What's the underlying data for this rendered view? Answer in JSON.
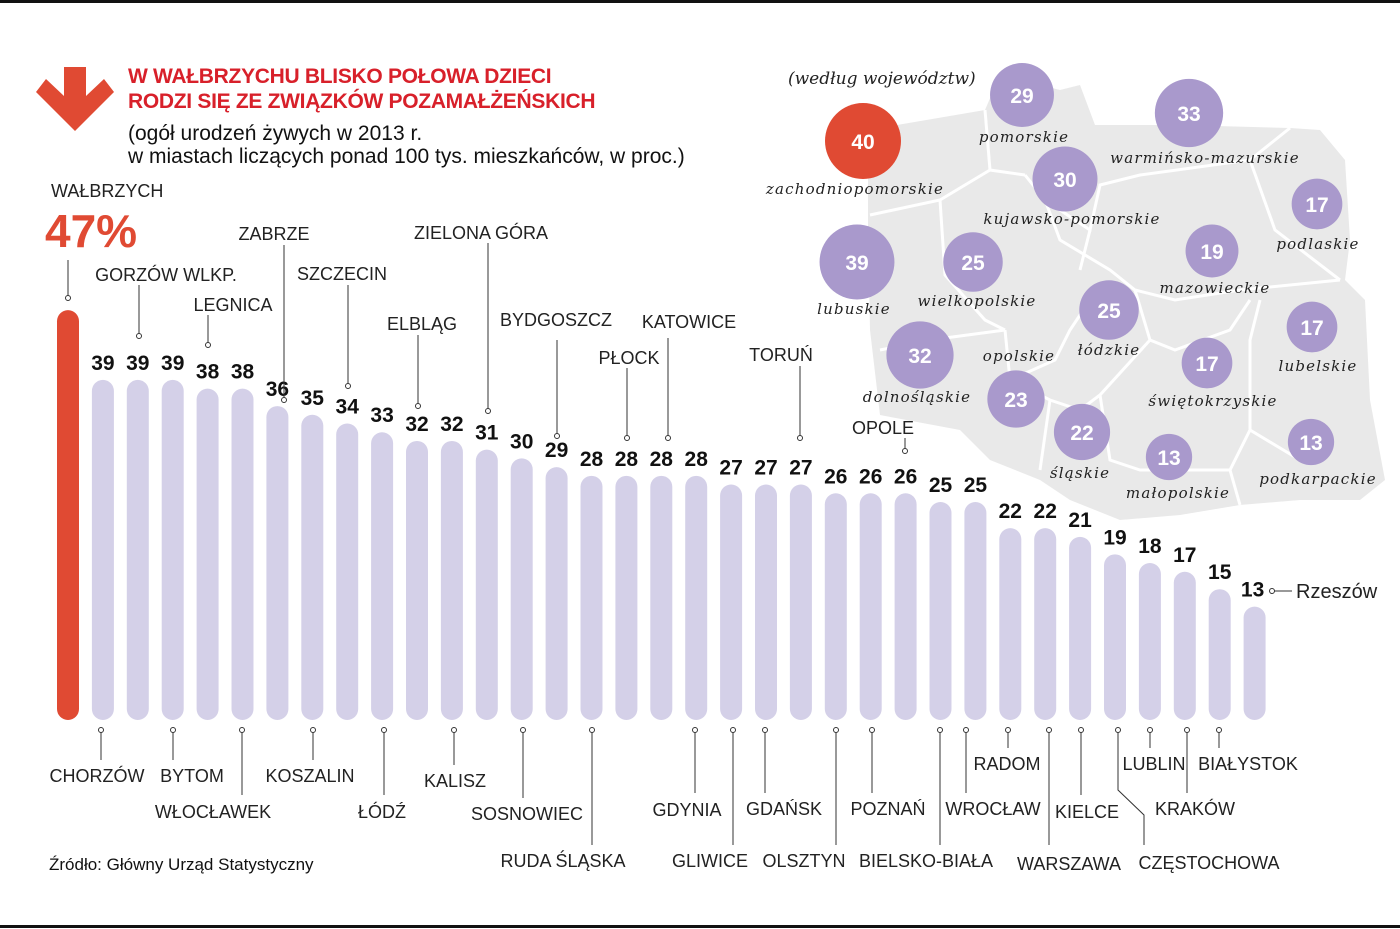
{
  "title_lines": [
    "W WAŁBRZYCHU BLISKO POŁOWA DZIECI",
    "RODZI SIĘ ZE ZWIĄZKÓW POZAMAŁŻEŃSKICH"
  ],
  "subtitle_lines": [
    "(ogół urodzeń żywych w 2013 r.",
    "w miastach liczących ponad 100 tys. mieszkańców, w proc.)"
  ],
  "source": "Źródło: Główny Urząd Statystyczny",
  "colors": {
    "highlight": "#e04a33",
    "bar": "#d4d0e8",
    "circle": "#a999cc",
    "map": "#e9e9e9",
    "title": "#d8202a"
  },
  "icons": {
    "header": "arrow-down-icon"
  },
  "chart_data": [
    {
      "type": "bar",
      "title": "",
      "highlight": {
        "city": "WAŁBRZYCH",
        "label": "47%"
      },
      "categories": [
        "WAŁBRZYCH",
        "CHORZÓW",
        "GORZÓW WLKP.",
        "BYTOM",
        "LEGNICA",
        "WŁOCŁAWEK",
        "ZABRZE",
        "KOSZALIN",
        "SZCZECIN",
        "ŁÓDŹ",
        "ELBLĄG",
        "KALISZ",
        "ZIELONA GÓRA",
        "SOSNOWIEC",
        "BYDGOSZCZ",
        "RUDA ŚLĄSKA",
        "PŁOCK",
        "KATOWICE",
        "GDYNIA",
        "GLIWICE",
        "GDAŃSK",
        "TORUŃ",
        "OLSZTYN",
        "POZNAŃ",
        "OPOLE",
        "BIELSKO-BIAŁA",
        "WROCŁAW",
        "RADOM",
        "WARSZAWA",
        "KIELCE",
        "CZĘSTOCHOWA",
        "LUBLIN",
        "KRAKÓW",
        "BIAŁYSTOK",
        "Rzeszów"
      ],
      "values": [
        47,
        39,
        39,
        39,
        38,
        38,
        36,
        35,
        34,
        33,
        32,
        32,
        31,
        30,
        29,
        28,
        28,
        28,
        28,
        27,
        27,
        27,
        26,
        26,
        26,
        25,
        25,
        22,
        22,
        21,
        19,
        18,
        17,
        15,
        13
      ],
      "ylim": [
        0,
        47
      ]
    },
    {
      "type": "bubble-map",
      "title": "(według województw)",
      "categories": [
        "zachodniopomorskie",
        "pomorskie",
        "warmińsko-mazurskie",
        "kujawsko-pomorskie",
        "podlaskie",
        "lubuskie",
        "wielkopolskie",
        "mazowieckie",
        "łódzkie",
        "lubelskie",
        "dolnośląskie",
        "świętokrzyskie",
        "opolskie",
        "śląskie",
        "małopolskie",
        "podkarpackie"
      ],
      "values": [
        40,
        29,
        33,
        30,
        17,
        39,
        25,
        19,
        25,
        17,
        32,
        17,
        23,
        22,
        13,
        13
      ],
      "highlighted": "zachodniopomorskie"
    }
  ]
}
